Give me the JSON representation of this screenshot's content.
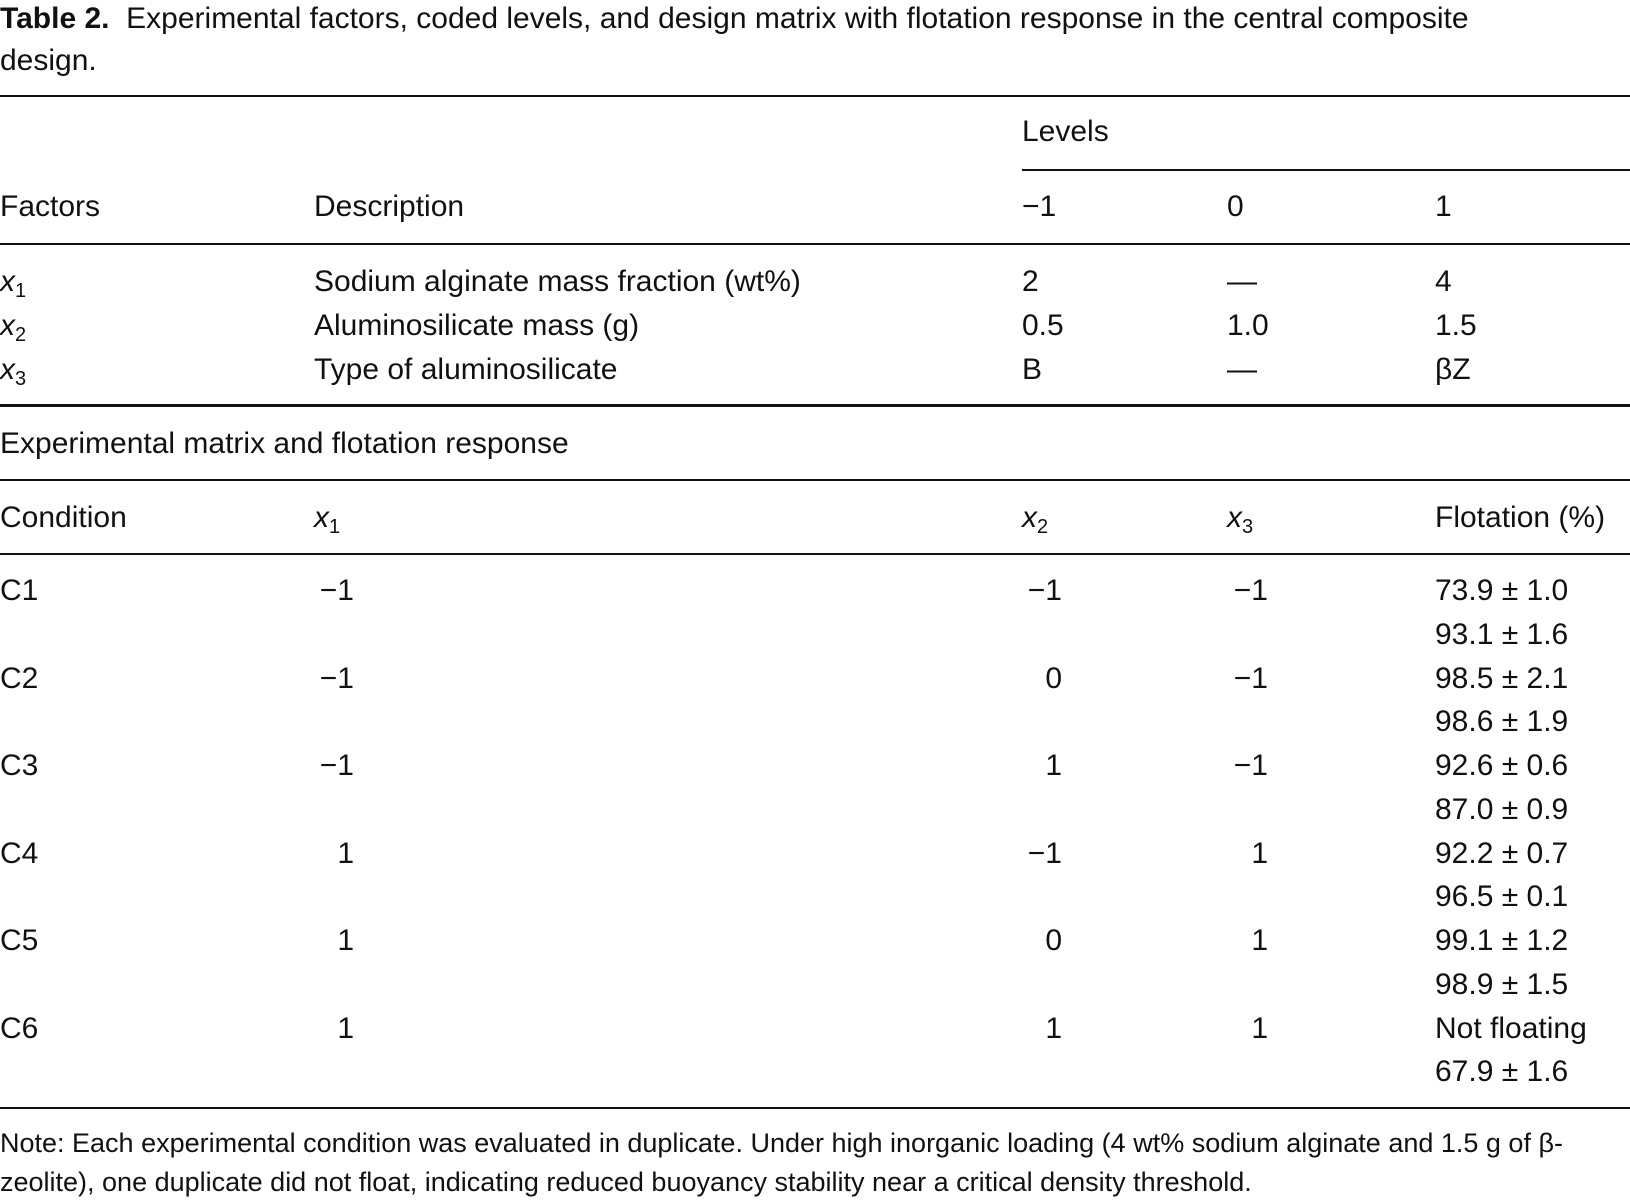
{
  "caption": {
    "label": "Table 2.",
    "text": "Experimental factors, coded levels, and design matrix with flotation response in the central composite design."
  },
  "factors_table": {
    "group_header": "Levels",
    "columns": [
      "Factors",
      "Description",
      "−1",
      "0",
      "1"
    ],
    "rows": [
      [
        {
          "var": "x",
          "sub": "1"
        },
        "Sodium alginate mass fraction (wt%)",
        "2",
        "—",
        "4"
      ],
      [
        {
          "var": "x",
          "sub": "2"
        },
        "Aluminosilicate mass (g)",
        "0.5",
        "1.0",
        "1.5"
      ],
      [
        {
          "var": "x",
          "sub": "3"
        },
        "Type of aluminosilicate",
        "B",
        "—",
        "βZ"
      ]
    ]
  },
  "matrix_table": {
    "section_title": "Experimental matrix and flotation response",
    "columns": [
      "Condition",
      {
        "var": "x",
        "sub": "1"
      },
      {
        "var": "x",
        "sub": "2"
      },
      {
        "var": "x",
        "sub": "3"
      },
      "Flotation (%)"
    ],
    "rows": [
      [
        "C1",
        "−1",
        "−1",
        "−1",
        [
          "73.9 ± 1.0",
          "93.1 ± 1.6"
        ]
      ],
      [
        "C2",
        "−1",
        "0",
        "−1",
        [
          "98.5 ± 2.1",
          "98.6 ± 1.9"
        ]
      ],
      [
        "C3",
        "−1",
        "1",
        "−1",
        [
          "92.6 ± 0.6",
          "87.0 ± 0.9"
        ]
      ],
      [
        "C4",
        "1",
        "−1",
        "1",
        [
          "92.2 ± 0.7",
          "96.5 ± 0.1"
        ]
      ],
      [
        "C5",
        "1",
        "0",
        "1",
        [
          "99.1 ± 1.2",
          "98.9 ± 1.5"
        ]
      ],
      [
        "C6",
        "1",
        "1",
        "1",
        [
          "Not floating",
          "67.9 ± 1.6"
        ]
      ]
    ]
  },
  "note": "Note: Each experimental condition was evaluated in duplicate. Under high inorganic loading (4 wt% sodium alginate and 1.5 g of β-zeolite), one duplicate did not float, indicating reduced buoyancy stability near a critical density threshold."
}
